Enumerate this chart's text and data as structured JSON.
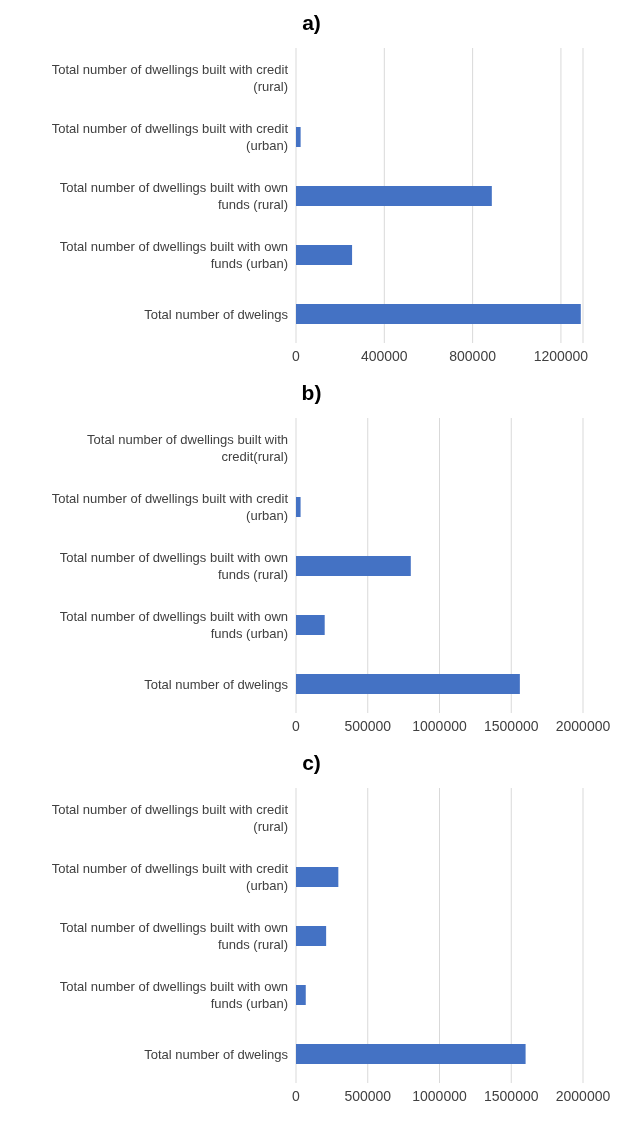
{
  "chart_data": [
    {
      "type": "bar",
      "orientation": "horizontal",
      "title": "a)",
      "categories": [
        "Total number of dwellings built with credit (rural)",
        "Total number of dwellings built with credit (urban)",
        "Total number of dwellings built with own funds (rural)",
        "Total number of dwellings built with own funds (urban)",
        "Total number of dwelings"
      ],
      "values": [
        0,
        21000,
        887000,
        254000,
        1290000
      ],
      "color": "#4472c4",
      "xlim": [
        0,
        1300000
      ],
      "xticks": [
        0,
        400000,
        800000,
        1200000
      ],
      "grid": "x"
    },
    {
      "type": "bar",
      "orientation": "horizontal",
      "title": "b)",
      "categories": [
        "Total number of dwellings built with credit(rural)",
        "Total number of dwellings built with credit (urban)",
        "Total number of dwellings built with own funds (rural)",
        "Total number of dwellings built with own funds (urban)",
        "Total number of dwelings"
      ],
      "values": [
        0,
        32000,
        800000,
        200000,
        1560000
      ],
      "color": "#4472c4",
      "xlim": [
        0,
        2000000
      ],
      "xticks": [
        0,
        500000,
        1000000,
        1500000,
        2000000
      ],
      "grid": "x"
    },
    {
      "type": "bar",
      "orientation": "horizontal",
      "title": "c)",
      "categories": [
        "Total number of dwellings built with credit (rural)",
        "Total number of dwellings built with credit (urban)",
        "Total number of dwellings built with own funds (rural)",
        "Total number of dwellings built with own funds (urban)",
        "Total number of dwelings"
      ],
      "values": [
        0,
        295000,
        210000,
        68000,
        1600000
      ],
      "color": "#4472c4",
      "xlim": [
        0,
        2000000
      ],
      "xticks": [
        0,
        500000,
        1000000,
        1500000,
        2000000
      ],
      "grid": "x"
    }
  ]
}
